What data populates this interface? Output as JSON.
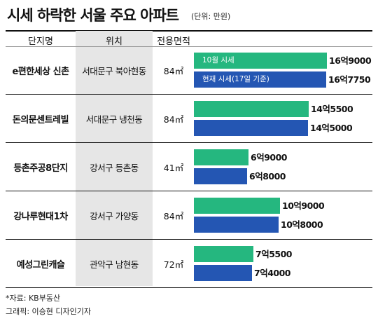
{
  "title": "시세 하락한 서울 주요 아파트",
  "unit": "(단위: 만원)",
  "headers": {
    "name": "단지명",
    "location": "위치",
    "area": "전용면적"
  },
  "colors": {
    "series_1": "#25b77f",
    "series_2": "#2456b3",
    "location_column": "#e6e6e6"
  },
  "chart_data": {
    "type": "bar",
    "orientation": "horizontal",
    "categories": [
      "e편한세상 신촌",
      "돈의문센트레빌",
      "등촌주공8단지",
      "강나루현대1차",
      "예성그린캐슬"
    ],
    "locations": [
      "서대문구 북아현동",
      "서대문구 냉천동",
      "강서구 등촌동",
      "강서구 가양동",
      "관악구 남현동"
    ],
    "areas": [
      "84㎡",
      "84㎡",
      "41㎡",
      "84㎡",
      "72㎡"
    ],
    "series": [
      {
        "name": "10월 시세",
        "values": [
          169000,
          145500,
          69000,
          109000,
          75500
        ],
        "labels": [
          "16억9000",
          "14억5500",
          "6억9000",
          "10억9000",
          "7억5500"
        ]
      },
      {
        "name": "현재 시세(17일 기준)",
        "values": [
          167750,
          145000,
          68000,
          108000,
          74000
        ],
        "labels": [
          "16억7750",
          "14억5000",
          "6억8000",
          "10억8000",
          "7억4000"
        ]
      }
    ]
  },
  "source": "*자료: KB부동산",
  "credit": "그래픽: 이승현 디자인기자"
}
